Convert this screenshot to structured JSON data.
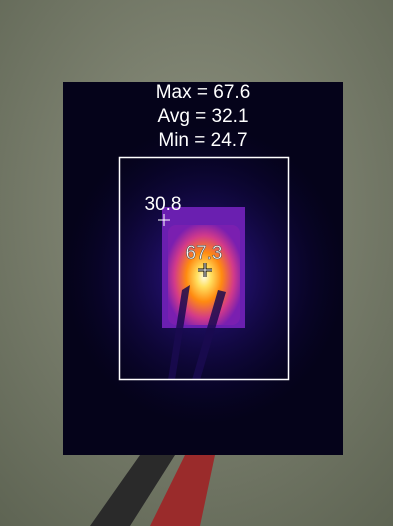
{
  "stats": [
    "Max = 67.6",
    "Avg = 32.1",
    "Min = 24.7"
  ],
  "spots": [
    30.8,
    67.3
  ]
}
